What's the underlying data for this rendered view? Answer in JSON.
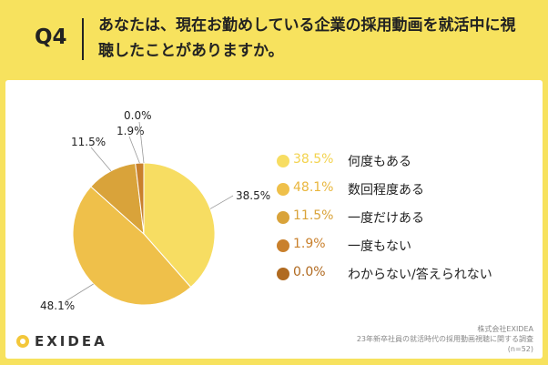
{
  "question": {
    "label": "Q4",
    "text": "あなたは、現在お勤めしている企業の採用動画を就活中に視聴したことがありますか。"
  },
  "chart_data": {
    "type": "pie",
    "title": "あなたは、現在お勤めしている企業の採用動画を就活中に視聴したことがありますか。",
    "categories": [
      "何度もある",
      "数回程度ある",
      "一度だけある",
      "一度もない",
      "わからない/答えられない"
    ],
    "values": [
      38.5,
      48.1,
      11.5,
      1.9,
      0.0
    ],
    "value_labels": [
      "38.5%",
      "48.1%",
      "11.5%",
      "1.9%",
      "0.0%"
    ],
    "colors": [
      "#f7dd62",
      "#efc04a",
      "#d9a33a",
      "#c9802c",
      "#b06a20"
    ],
    "legend_pct_colors": [
      "#f3d34e",
      "#e9b63d",
      "#d9a33a",
      "#c9802c",
      "#b06a20"
    ],
    "legend_position": "right"
  },
  "brand": {
    "name": "EXIDEA"
  },
  "credits": {
    "company": "株式会社EXIDEA",
    "survey": "23年新卒社員の就活時代の採用動画視聴に関する調査",
    "n": "(n=52)"
  }
}
